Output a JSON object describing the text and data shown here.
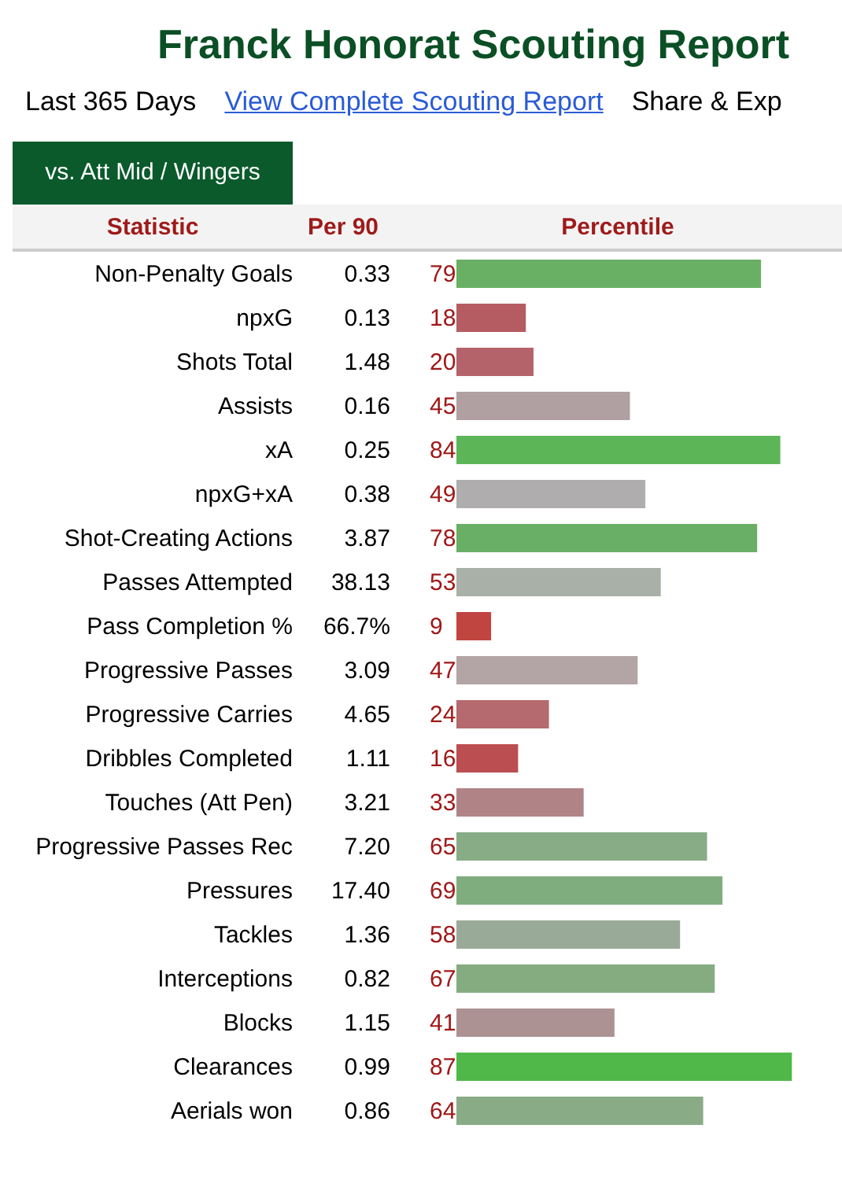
{
  "chart_data": {
    "type": "bar",
    "orientation": "horizontal",
    "title": "Franck Honorat Scouting Report",
    "subtitle": "Last 365 Days",
    "ylabel": "Statistic",
    "xlabel": "Percentile",
    "annotations": [
      "View Complete Scouting Report",
      "Share & Exp",
      "vs. Att Mid / Wingers",
      "Per 90",
      "0.33",
      "0.13",
      "1.48",
      "0.16",
      "0.25",
      "0.38",
      "3.87",
      "38.13",
      "66.7%",
      "3.09",
      "4.65",
      "1.11",
      "3.21",
      "7.20",
      "17.40",
      "1.36",
      "0.82",
      "1.15",
      "0.99",
      "0.86"
    ],
    "categories": [
      "Non-Penalty Goals",
      "npxG",
      "Shots Total",
      "Assists",
      "xA",
      "npxG+xA",
      "Shot-Creating Actions",
      "Passes Attempted",
      "Pass Completion %",
      "Progressive Passes",
      "Progressive Carries",
      "Dribbles Completed",
      "Touches (Att Pen)",
      "Progressive Passes Rec",
      "Pressures",
      "Tackles",
      "Interceptions",
      "Blocks",
      "Clearances",
      "Aerials won"
    ],
    "values": [
      79,
      18,
      20,
      45,
      84,
      49,
      78,
      53,
      9,
      47,
      24,
      16,
      33,
      65,
      69,
      58,
      67,
      41,
      87,
      64
    ],
    "colors": [
      "#69b064",
      "#b55c63",
      "#b5636a",
      "#b0a0a2",
      "#5cb658",
      "#b0adae",
      "#6aaf66",
      "#a8b0a8",
      "#c0443f",
      "#b3a4a5",
      "#b46a6e",
      "#bb4e50",
      "#b08487",
      "#88ac86",
      "#80ad7d",
      "#9aaa98",
      "#85ac81",
      "#ad9294",
      "#50b848",
      "#89ac87"
    ],
    "xlim": [
      0,
      100
    ],
    "tick_labels": "y",
    "data_labels": true
  }
}
